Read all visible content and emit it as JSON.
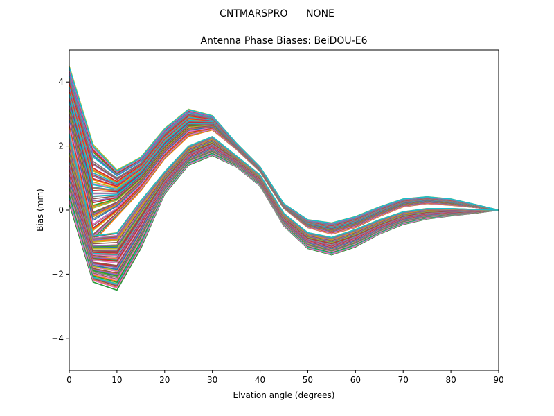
{
  "suptitle": "CNTMARSPRO      NONE",
  "chart_data": {
    "type": "line",
    "title": "Antenna Phase Biases: BeiDOU-E6",
    "xlabel": "Elvation angle (degrees)",
    "ylabel": "Bias (mm)",
    "xlim": [
      0,
      90
    ],
    "ylim": [
      -5,
      5
    ],
    "xticks": [
      0,
      10,
      20,
      30,
      40,
      50,
      60,
      70,
      80,
      90
    ],
    "yticks": [
      -4,
      -2,
      0,
      2,
      4
    ],
    "xtick_labels": [
      "0",
      "10",
      "20",
      "30",
      "40",
      "50",
      "60",
      "70",
      "80",
      "90"
    ],
    "ytick_labels": [
      "−4",
      "−2",
      "0",
      "2",
      "4"
    ],
    "x": [
      0,
      5,
      10,
      15,
      20,
      25,
      30,
      35,
      40,
      45,
      50,
      55,
      60,
      65,
      70,
      75,
      80,
      85,
      90
    ],
    "series_count": 160,
    "envelope": {
      "description": "Approximate range spanned by the family of ~160 azimuth curves",
      "family_A_upper": [
        4.5,
        2.05,
        1.25,
        1.65,
        2.55,
        3.15,
        2.95,
        2.1,
        1.35,
        0.2,
        -0.3,
        -0.4,
        -0.2,
        0.1,
        0.35,
        0.42,
        0.35,
        0.18,
        0.0
      ],
      "family_A_lower": [
        2.4,
        -1.0,
        -0.2,
        0.6,
        1.6,
        2.3,
        2.5,
        1.9,
        1.2,
        0.05,
        -0.55,
        -0.75,
        -0.55,
        -0.2,
        0.1,
        0.2,
        0.15,
        0.08,
        0.0
      ],
      "family_B_upper": [
        2.4,
        -0.8,
        -0.7,
        0.3,
        1.2,
        2.0,
        2.3,
        1.7,
        1.1,
        -0.1,
        -0.7,
        -0.85,
        -0.6,
        -0.3,
        -0.05,
        0.05,
        0.05,
        0.02,
        0.0
      ],
      "family_B_lower": [
        0.2,
        -2.25,
        -2.5,
        -1.2,
        0.5,
        1.4,
        1.7,
        1.35,
        0.75,
        -0.5,
        -1.2,
        -1.4,
        -1.15,
        -0.75,
        -0.45,
        -0.28,
        -0.18,
        -0.1,
        0.0
      ]
    },
    "color_cycle": [
      "#1f77b4",
      "#ff7f0e",
      "#2ca02c",
      "#d62728",
      "#9467bd",
      "#8c564b",
      "#e377c2",
      "#7f7f7f",
      "#bcbd22",
      "#17becf"
    ]
  }
}
